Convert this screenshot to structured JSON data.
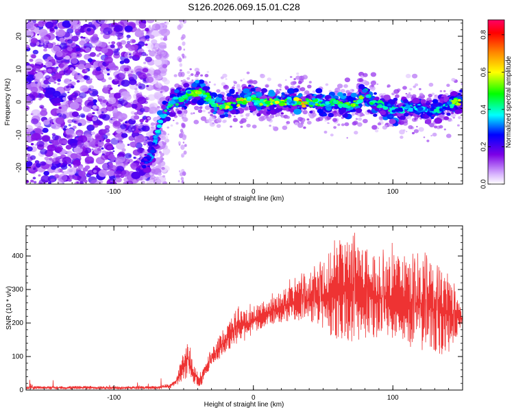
{
  "title": "S126.2026.069.15.01.C28",
  "chart_data": [
    {
      "type": "heatmap",
      "xlabel": "Height of straight line (km)",
      "ylabel": "Frequency (Hz)",
      "xlim": [
        -163,
        150
      ],
      "ylim": [
        -25,
        25
      ],
      "x_ticks": [
        -100,
        0,
        100
      ],
      "y_ticks": [
        -20,
        -10,
        0,
        10,
        20
      ],
      "colorbar": {
        "label": "Normalized spectral amplitude",
        "range": [
          0,
          0.88
        ],
        "ticks": [
          0.0,
          0.2,
          0.4,
          0.6,
          0.8
        ],
        "colors": [
          "#ffffff",
          "#d8b4fe",
          "#7c00e6",
          "#0000ff",
          "#00ffff",
          "#00ff00",
          "#ffff00",
          "#ff8800",
          "#ff0000",
          "#ff0066"
        ]
      },
      "ridge": {
        "x": [
          -80,
          -74,
          -70,
          -66,
          -62,
          -58,
          -50,
          -44,
          -38,
          -34,
          -30,
          -26,
          -20,
          -14,
          -8,
          -2,
          4,
          10,
          16,
          22,
          28,
          34,
          40,
          46,
          52,
          58,
          64,
          70,
          76,
          80,
          84,
          90,
          96,
          102,
          108,
          114,
          120,
          126,
          132,
          138,
          144,
          148
        ],
        "y": [
          -19,
          -17,
          -11,
          -6,
          -2,
          0,
          1,
          3,
          3,
          2,
          0,
          -1,
          -1,
          0,
          0,
          1,
          0,
          0,
          0,
          0,
          0,
          0,
          0,
          0,
          -1,
          0,
          -1,
          -1,
          0,
          3,
          0,
          -1,
          -1,
          -3,
          -2,
          -2,
          -2,
          -3,
          -2,
          -1,
          0,
          0
        ],
        "peak_amplitude": [
          0.3,
          0.35,
          0.4,
          0.45,
          0.5,
          0.45,
          0.5,
          0.55,
          0.6,
          0.5,
          0.55,
          0.55,
          0.6,
          0.65,
          0.75,
          0.6,
          0.55,
          0.6,
          0.6,
          0.65,
          0.55,
          0.8,
          0.6,
          0.55,
          0.5,
          0.55,
          0.5,
          0.55,
          0.6,
          0.55,
          0.5,
          0.45,
          0.45,
          0.45,
          0.45,
          0.4,
          0.4,
          0.4,
          0.45,
          0.4,
          0.6,
          0.85
        ]
      },
      "noise_region": {
        "x_range": [
          -163,
          -70
        ],
        "level": "low-moderate"
      }
    },
    {
      "type": "line",
      "xlabel": "Height of straight line (km)",
      "ylabel": "SNR (10 * v/v)",
      "xlim": [
        -163,
        150
      ],
      "ylim": [
        0,
        490
      ],
      "x_ticks": [
        -100,
        0,
        100
      ],
      "y_ticks": [
        0,
        100,
        200,
        300,
        400
      ],
      "color": "#ee3333",
      "series": [
        {
          "name": "SNR",
          "x": [
            -163,
            -150,
            -140,
            -130,
            -120,
            -110,
            -100,
            -90,
            -80,
            -70,
            -60,
            -55,
            -50,
            -47,
            -45,
            -42,
            -38,
            -35,
            -30,
            -25,
            -20,
            -15,
            -10,
            -5,
            0,
            10,
            20,
            30,
            40,
            50,
            60,
            70,
            80,
            90,
            100,
            110,
            120,
            130,
            140,
            150
          ],
          "low": [
            2,
            2,
            2,
            2,
            2,
            2,
            2,
            2,
            2,
            2,
            5,
            15,
            25,
            40,
            30,
            15,
            5,
            40,
            70,
            90,
            110,
            130,
            140,
            150,
            170,
            190,
            200,
            210,
            200,
            180,
            150,
            140,
            150,
            150,
            140,
            130,
            120,
            110,
            100,
            200
          ],
          "high": [
            12,
            13,
            12,
            12,
            13,
            12,
            12,
            12,
            12,
            12,
            20,
            40,
            120,
            150,
            100,
            80,
            40,
            80,
            120,
            160,
            180,
            220,
            260,
            230,
            250,
            270,
            300,
            320,
            340,
            380,
            440,
            480,
            420,
            400,
            420,
            380,
            400,
            370,
            350,
            230
          ]
        }
      ]
    }
  ]
}
